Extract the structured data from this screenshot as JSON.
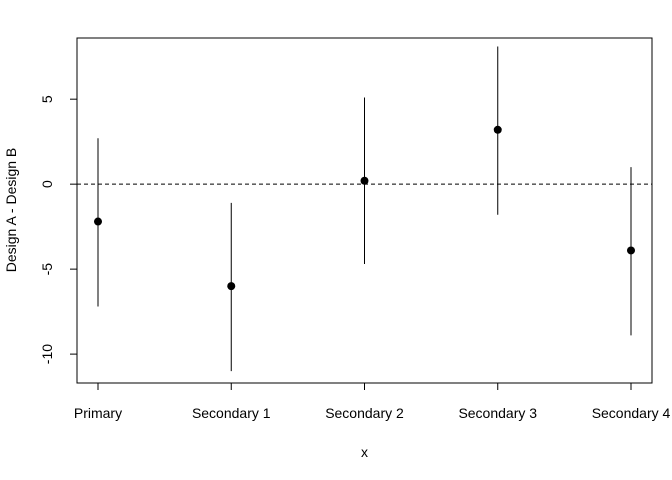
{
  "chart_data": {
    "type": "scatter",
    "subtype": "point-with-error-bars",
    "title": "",
    "xlabel": "x",
    "ylabel": "Design A - Design B",
    "categories": [
      "Primary",
      "Secondary 1",
      "Secondary 2",
      "Secondary 3",
      "Secondary 4"
    ],
    "series": [
      {
        "values": [
          -2.2,
          -6.0,
          0.2,
          3.2,
          -3.9
        ],
        "lower": [
          -7.2,
          -11.0,
          -4.7,
          -1.8,
          -8.9
        ],
        "upper": [
          2.7,
          -1.1,
          5.1,
          8.1,
          1.0
        ]
      }
    ],
    "yticks": [
      -10,
      -5,
      0,
      5
    ],
    "ylim": [
      -11.7,
      8.6
    ],
    "reference_line": {
      "y": 0,
      "style": "dashed"
    },
    "grid": false,
    "legend": "none"
  }
}
